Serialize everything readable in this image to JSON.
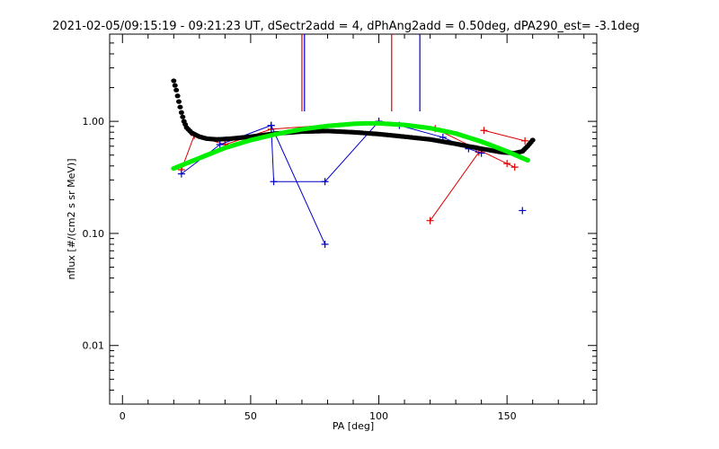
{
  "chart_data": {
    "type": "scatter",
    "title": "2021-02-05/09:15:19 - 09:21:23 UT, dSectr2add = 4, dPhAng2add = 0.50deg, dPA290_est=  -3.1deg",
    "xlabel": "PA [deg]",
    "ylabel": "nflux [#/(cm2 s sr MeV)]",
    "xlim": [
      -5,
      185
    ],
    "ylim": [
      0.003,
      6.0
    ],
    "yscale": "log",
    "x_ticks": [
      0,
      50,
      100,
      150
    ],
    "x_tick_labels": [
      "0",
      "50",
      "100",
      "150"
    ],
    "y_ticks": [
      0.01,
      0.1,
      1.0
    ],
    "y_tick_labels": [
      "0.01",
      "0.10",
      "1.00"
    ],
    "grid": false,
    "colors": {
      "red": "#dd0000",
      "blue": "#0000cc",
      "black": "#000000",
      "green": "#00ee00"
    },
    "series": [
      {
        "style": "red-line-plus",
        "points": [
          [
            23,
            0.37
          ],
          [
            28,
            0.75
          ],
          [
            40,
            0.62
          ],
          [
            58,
            0.85
          ],
          [
            100,
            1.0
          ],
          [
            122,
            0.86
          ],
          [
            138,
            0.57
          ],
          [
            150,
            0.42
          ],
          [
            153,
            0.39
          ]
        ]
      },
      {
        "style": "red-line-plus",
        "points": [
          [
            120,
            0.13
          ],
          [
            139,
            0.53
          ]
        ]
      },
      {
        "style": "red-line-plus",
        "points": [
          [
            141,
            0.83
          ],
          [
            157,
            0.67
          ]
        ]
      },
      {
        "style": "blue-line-plus",
        "points": [
          [
            23,
            0.34
          ],
          [
            38,
            0.62
          ],
          [
            58,
            0.92
          ],
          [
            59,
            0.29
          ],
          [
            79,
            0.29
          ],
          [
            100,
            1.0
          ],
          [
            108,
            0.92
          ],
          [
            125,
            0.72
          ],
          [
            135,
            0.57
          ],
          [
            140,
            0.52
          ]
        ]
      },
      {
        "style": "blue-line-plus",
        "points": [
          [
            58,
            0.92
          ],
          [
            79,
            0.08
          ]
        ]
      },
      {
        "style": "blue-plus",
        "points": [
          [
            156,
            0.16
          ]
        ]
      },
      {
        "style": "black-thick-curve",
        "points": [
          [
            20,
            2.3
          ],
          [
            21,
            1.9
          ],
          [
            22,
            1.5
          ],
          [
            23,
            1.2
          ],
          [
            24,
            1.0
          ],
          [
            25,
            0.88
          ],
          [
            27,
            0.79
          ],
          [
            30,
            0.73
          ],
          [
            33,
            0.7
          ],
          [
            37,
            0.69
          ],
          [
            42,
            0.7
          ],
          [
            50,
            0.73
          ],
          [
            60,
            0.78
          ],
          [
            70,
            0.81
          ],
          [
            80,
            0.82
          ],
          [
            90,
            0.8
          ],
          [
            100,
            0.77
          ],
          [
            110,
            0.73
          ],
          [
            120,
            0.69
          ],
          [
            130,
            0.63
          ],
          [
            140,
            0.57
          ],
          [
            148,
            0.53
          ],
          [
            153,
            0.52
          ],
          [
            156,
            0.54
          ],
          [
            158,
            0.6
          ],
          [
            160,
            0.68
          ]
        ]
      },
      {
        "style": "green-thick-curve",
        "points": [
          [
            20,
            0.38
          ],
          [
            30,
            0.47
          ],
          [
            40,
            0.58
          ],
          [
            50,
            0.68
          ],
          [
            60,
            0.77
          ],
          [
            70,
            0.85
          ],
          [
            80,
            0.91
          ],
          [
            90,
            0.95
          ],
          [
            95,
            0.96
          ],
          [
            100,
            0.96
          ],
          [
            110,
            0.93
          ],
          [
            120,
            0.87
          ],
          [
            130,
            0.78
          ],
          [
            140,
            0.66
          ],
          [
            150,
            0.54
          ],
          [
            158,
            0.45
          ]
        ]
      }
    ],
    "vertical_markers": [
      {
        "x": 70,
        "color": "red"
      },
      {
        "x": 71,
        "color": "blue"
      },
      {
        "x": 105,
        "color": "red"
      },
      {
        "x": 116,
        "color": "blue"
      }
    ]
  }
}
